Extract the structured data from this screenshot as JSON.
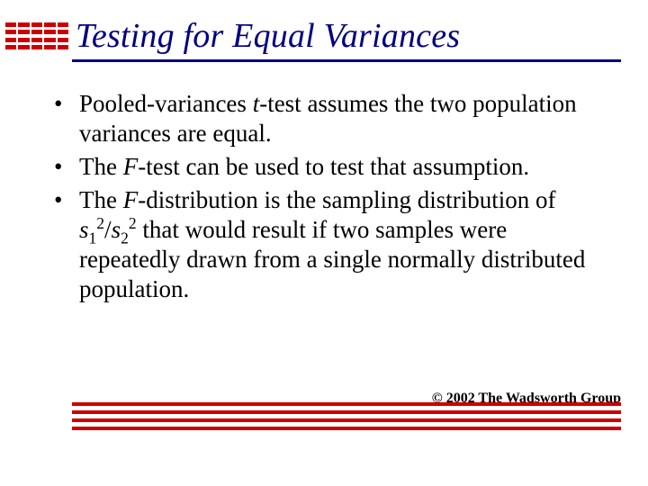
{
  "colors": {
    "accent_red": "#cc0000",
    "title_navy": "#000080",
    "text_black": "#000000",
    "background": "#ffffff"
  },
  "title": "Testing for Equal Variances",
  "bullets": [
    {
      "pre": "Pooled-variances ",
      "ital": "t",
      "post": "-test assumes the two population variances are equal."
    },
    {
      "pre": "The ",
      "ital": "F",
      "post": "-test can be used to test that assumption."
    },
    {
      "pre": "The ",
      "ital": "F",
      "post_a": "-distribution is the sampling distribution of ",
      "s1": "s",
      "s1_sub": "1",
      "s1_sup": "2",
      "slash": "/",
      "s2": "s",
      "s2_sub": "2",
      "s2_sup": "2",
      "post_b": " that would result if two samples were repeatedly drawn from a single normally distributed population."
    }
  ],
  "copyright": "© 2002 The Wadsworth Group"
}
